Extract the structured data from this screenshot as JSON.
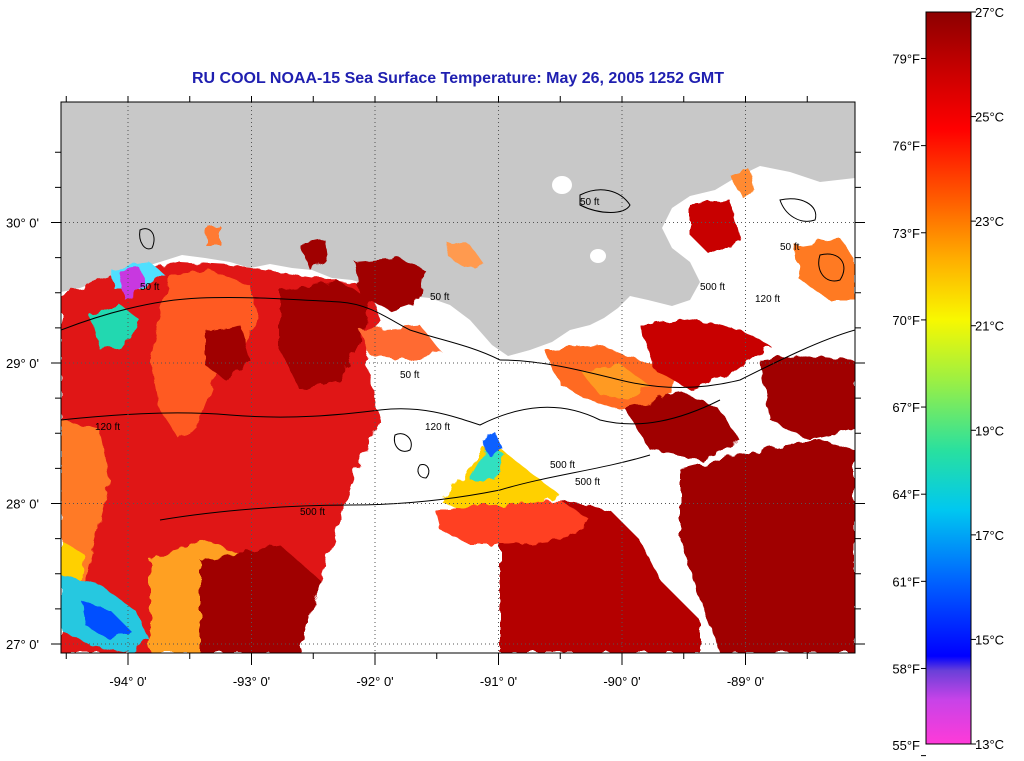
{
  "title": "RU COOL  NOAA-15  Sea Surface Temperature:  May 26, 2005 1252 GMT",
  "lon_ticks": [
    "-94° 0'",
    "-93° 0'",
    "-92° 0'",
    "-91° 0'",
    "-90° 0'",
    "-89° 0'"
  ],
  "lon_values": [
    -94,
    -93,
    -92,
    -91,
    -90,
    -89
  ],
  "lat_ticks": [
    "30° 0'",
    "29° 0'",
    "28° 0'",
    "27° 0'"
  ],
  "lat_values": [
    30,
    29,
    28,
    27
  ],
  "contour_labels": [
    "50 ft",
    "50 ft",
    "50 ft",
    "50 ft",
    "120 ft",
    "120 ft",
    "500 ft",
    "500 ft",
    "500 ft",
    "50 ft",
    "500 ft",
    "120 ft"
  ],
  "colorbar": {
    "fahrenheit": [
      "79°F",
      "76°F",
      "73°F",
      "70°F",
      "67°F",
      "64°F",
      "61°F",
      "58°F",
      "55°F"
    ],
    "celsius": [
      "27°C",
      "25°C",
      "23°C",
      "21°C",
      "19°C",
      "17°C",
      "15°C",
      "13°C"
    ],
    "min_c": 13,
    "max_c": 27
  },
  "colors": {
    "land": "#c8c8c8",
    "no_data": "#ffffff",
    "title": "#1f1fb0"
  }
}
